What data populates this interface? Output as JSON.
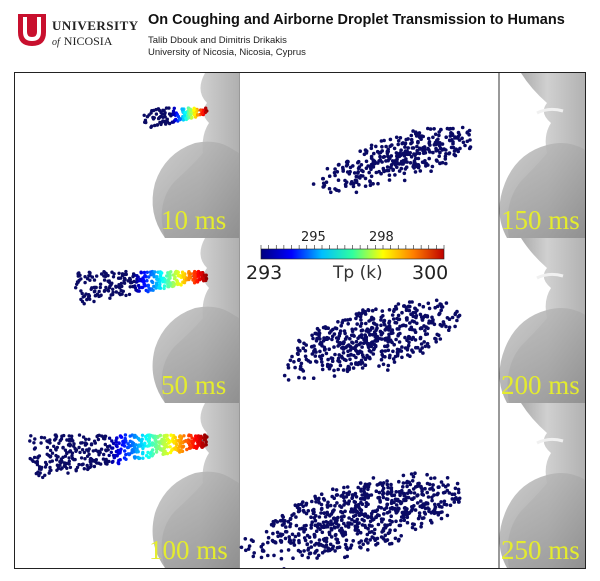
{
  "header": {
    "university_line1": "UNIVERSITY",
    "university_of": "of",
    "university_line2": "NICOSIA",
    "title": "On Coughing and Airborne Droplet Transmission to Humans",
    "authors": "Talib Dbouk and Dimitris Drikakis",
    "affiliation": "University of Nicosia, Nicosia, Cyprus",
    "logo_color": "#c8102e"
  },
  "figure": {
    "panels": [
      {
        "time": "10 ms"
      },
      {
        "time": "50 ms"
      },
      {
        "time": "100 ms"
      },
      {
        "time": "150 ms"
      },
      {
        "time": "200 ms"
      },
      {
        "time": "250 ms"
      }
    ],
    "colorbar": {
      "title": "Tp (k)",
      "min_label": "293",
      "max_label": "300",
      "tick_labels": [
        "295",
        "298"
      ],
      "min": 293,
      "max": 300,
      "colormap": [
        "#00007f",
        "#0000ff",
        "#00bfff",
        "#2fff9f",
        "#ffff00",
        "#ff7f00",
        "#bf0000"
      ]
    },
    "droplet_color": "#0a0a64",
    "face_color": "#bdbdbd"
  }
}
